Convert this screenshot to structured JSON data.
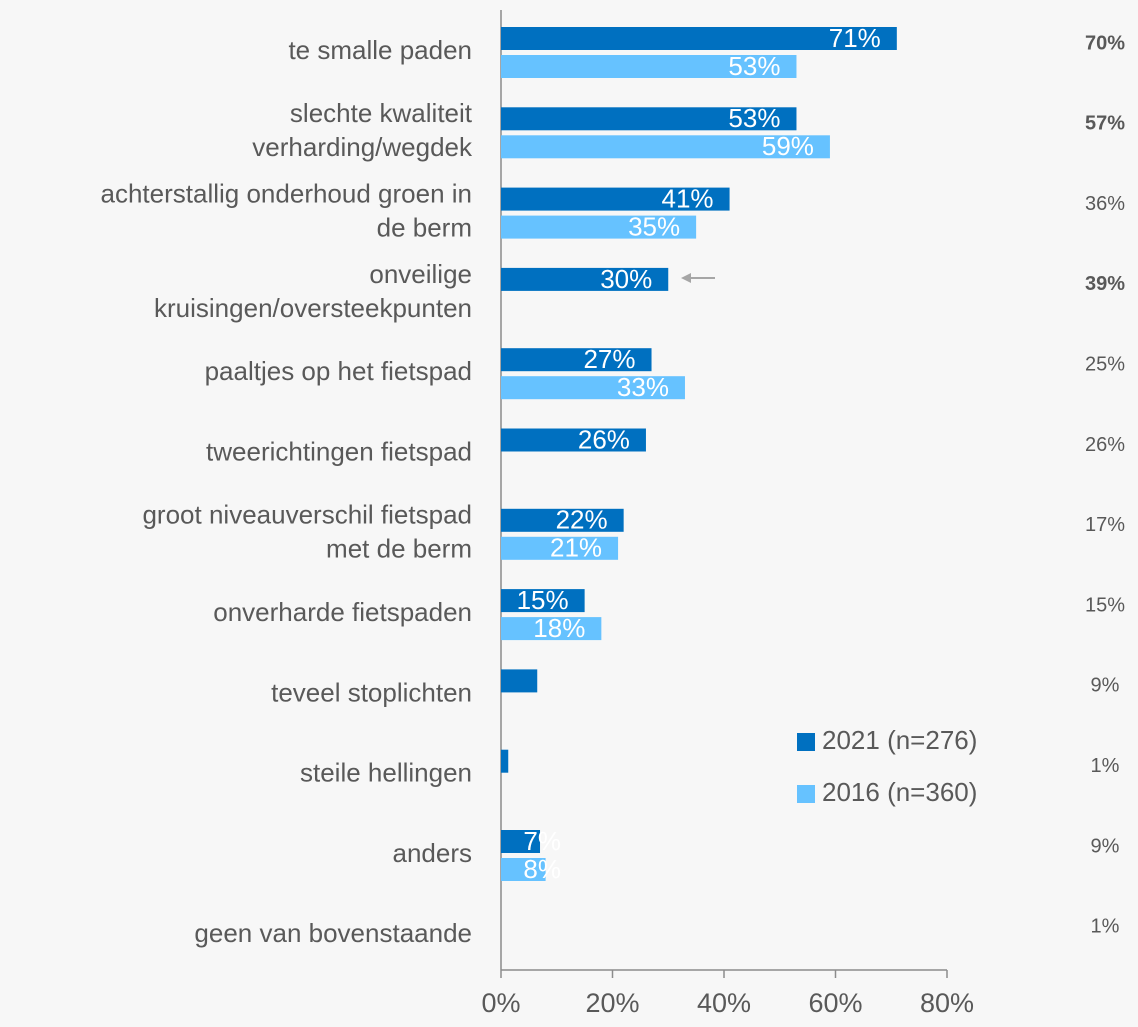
{
  "chart_data": {
    "type": "hbar",
    "categories": [
      [
        "te smalle paden"
      ],
      [
        "slechte kwaliteit",
        "verharding/wegdek"
      ],
      [
        "achterstallig onderhoud groen in",
        "de berm"
      ],
      [
        "onveilige",
        "kruisingen/oversteekpunten"
      ],
      [
        "paaltjes op het fietspad"
      ],
      [
        "tweerichtingen fietspad"
      ],
      [
        "groot niveauverschil fietspad",
        "met de berm"
      ],
      [
        "onverharde fietspaden"
      ],
      [
        "teveel stoplichten"
      ],
      [
        "steile hellingen"
      ],
      [
        "anders"
      ],
      [
        "geen van bovenstaande"
      ]
    ],
    "series": [
      {
        "name": "2021 (n=276)",
        "color": "#0070c0",
        "values": [
          71,
          53,
          41,
          30,
          27,
          26,
          22,
          15,
          6.5,
          1.3,
          7,
          null
        ],
        "value_labels": [
          "71%",
          "53%",
          "41%",
          "30%",
          "27%",
          "26%",
          "22%",
          "15%",
          null,
          null,
          "7%",
          null
        ]
      },
      {
        "name": "2016 (n=360)",
        "color": "#66c2ff",
        "values": [
          53,
          59,
          35,
          null,
          33,
          null,
          21,
          18,
          null,
          null,
          8,
          null
        ],
        "value_labels": [
          "53%",
          "59%",
          "35%",
          null,
          "33%",
          null,
          "21%",
          "18%",
          null,
          null,
          "8%",
          null
        ]
      }
    ],
    "right_column": {
      "values": [
        70,
        57,
        36,
        39,
        25,
        26,
        17,
        15,
        9,
        1,
        9,
        1
      ],
      "value_labels": [
        "70%",
        "57%",
        "36%",
        "39%",
        "25%",
        "26%",
        "17%",
        "15%",
        "9%",
        "1%",
        "9%",
        "1%"
      ],
      "bold": [
        true,
        true,
        false,
        true,
        false,
        false,
        false,
        false,
        false,
        false,
        false,
        false
      ]
    },
    "xlim": [
      0,
      80
    ],
    "xticks": [
      {
        "value": 0,
        "label": "0%"
      },
      {
        "value": 20,
        "label": "20%"
      },
      {
        "value": 40,
        "label": "40%"
      },
      {
        "value": 60,
        "label": "60%"
      },
      {
        "value": 80,
        "label": "80%"
      }
    ],
    "legend": "lower right"
  }
}
